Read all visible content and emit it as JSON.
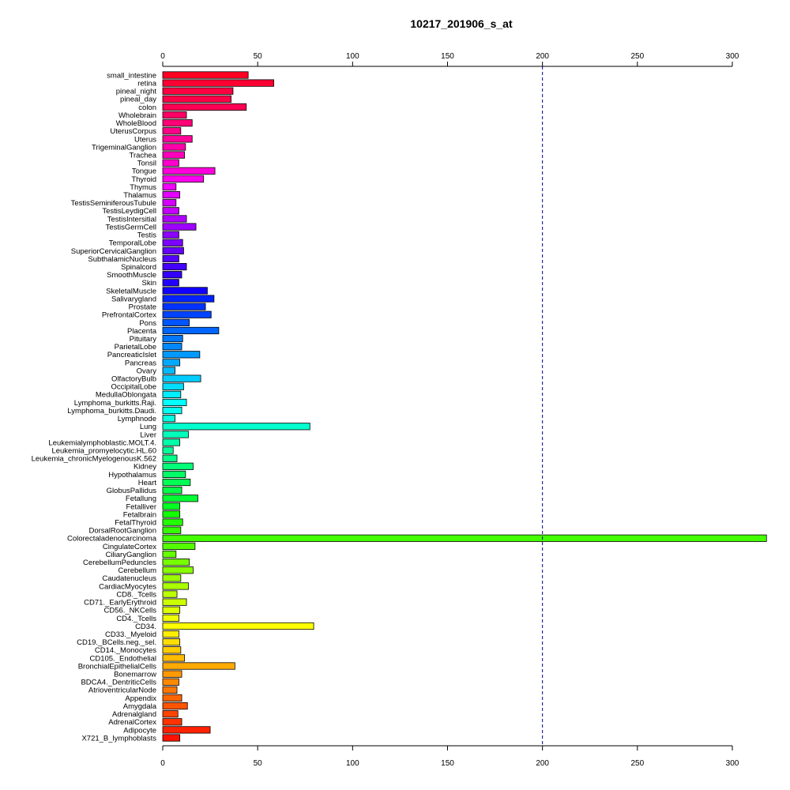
{
  "chart_data": {
    "type": "bar",
    "orientation": "horizontal",
    "title": "10217_201906_s_at",
    "xlabel": "",
    "ylabel": "",
    "xlim": [
      0,
      300
    ],
    "xticks": [
      0,
      50,
      100,
      150,
      200,
      250,
      300
    ],
    "reference_line": 200,
    "axes": "top and bottom",
    "grid": false,
    "categories": [
      "small_intestine",
      "retina",
      "pineal_night",
      "pineal_day",
      "colon",
      "Wholebrain",
      "WholeBlood",
      "UterusCorpus",
      "Uterus",
      "TrigeminalGanglion",
      "Trachea",
      "Tonsil",
      "Tongue",
      "Thyroid",
      "Thymus",
      "Thalamus",
      "TestisSeminiferousTubule",
      "TestisLeydigCell",
      "TestisIntersitial",
      "TestisGermCell",
      "Testis",
      "TemporalLobe",
      "SuperiorCervicalGanglion",
      "SubthalamicNucleus",
      "Spinalcord",
      "SmoothMuscle",
      "Skin",
      "SkeletalMuscle",
      "Salivarygland",
      "Prostate",
      "PrefrontalCortex",
      "Pons",
      "Placenta",
      "Pituitary",
      "ParietalLobe",
      "PancreaticIslet",
      "Pancreas",
      "Ovary",
      "OlfactoryBulb",
      "OccipitalLobe",
      "MedullaOblongata",
      "Lymphoma_burkitts.Raji.",
      "Lymphoma_burkitts.Daudi.",
      "Lymphnode",
      "Lung",
      "Liver",
      "Leukemialymphoblastic.MOLT.4.",
      "Leukemia_promyelocytic.HL.60",
      "Leukemia_chronicMyelogenousK.562",
      "Kidney",
      "Hypothalamus",
      "Heart",
      "GlobusPallidus",
      "Fetallung",
      "Fetalliver",
      "Fetalbrain",
      "FetalThyroid",
      "DorsalRootGanglion",
      "Colorectaladenocarcinoma",
      "CingulateCortex",
      "CiliaryGanglion",
      "CerebellumPeduncles",
      "Cerebellum",
      "Caudatenucleus",
      "CardiacMyocytes",
      "CD8._Tcells",
      "CD71._EarlyErythroid",
      "CD56._NKCells",
      "CD4._Tcells",
      "CD34.",
      "CD33._Myeloid",
      "CD19._BCells.neg._sel.",
      "CD14._Monocytes",
      "CD105._Endothelial",
      "BronchialEpithelialCells",
      "Bonemarrow",
      "BDCA4._DentriticCells",
      "AtrioventricularNode",
      "Appendix",
      "Amygdala",
      "Adrenalgland",
      "AdrenalCortex",
      "Adipocyte",
      "X721_B_lymphoblasts"
    ],
    "values": [
      45,
      58.5,
      37,
      36,
      44,
      12.5,
      15.5,
      9.5,
      15.5,
      12,
      11.5,
      8.5,
      27.5,
      21.5,
      7,
      9,
      7,
      8.5,
      12.5,
      17.5,
      8.5,
      10.5,
      11,
      8.5,
      12.5,
      10,
      8.5,
      23.5,
      27,
      22.5,
      25.5,
      14,
      29.5,
      10.5,
      10,
      19.5,
      9,
      6.5,
      20,
      11,
      9.5,
      12.5,
      10,
      6.5,
      77.5,
      13.5,
      9,
      5.5,
      7.5,
      16,
      12,
      14.5,
      10,
      18.5,
      9,
      9,
      10.5,
      9.5,
      318,
      17,
      7,
      14,
      16,
      9.5,
      13.5,
      7.5,
      12.5,
      9,
      8.5,
      79.5,
      8.5,
      9,
      9.5,
      11.5,
      38,
      10,
      8.5,
      7.5,
      10,
      13,
      8,
      10,
      25,
      9
    ],
    "colors": [
      "#ff0022",
      "#ff0033",
      "#ff0040",
      "#ff0048",
      "#ff0055",
      "#ff0066",
      "#ff0077",
      "#ff0088",
      "#ff0099",
      "#ff00aa",
      "#ff00bb",
      "#ff00cc",
      "#ff00dd",
      "#ff00ee",
      "#f400ff",
      "#e400ff",
      "#d400ff",
      "#c400ff",
      "#b000ff",
      "#9e00ff",
      "#8c00ff",
      "#7a00ff",
      "#6600ff",
      "#5500ff",
      "#4400ff",
      "#3300ff",
      "#2200ff",
      "#1100ff",
      "#0022ff",
      "#0033ff",
      "#0044ff",
      "#0055ff",
      "#0066ff",
      "#0077ff",
      "#0088ff",
      "#0099ff",
      "#00aaff",
      "#00bbff",
      "#00ccff",
      "#00ddff",
      "#00eeff",
      "#00ffff",
      "#00fff0",
      "#00ffe0",
      "#00ffcc",
      "#00ffbb",
      "#00ffaa",
      "#00ff99",
      "#00ff88",
      "#00ff77",
      "#00ff66",
      "#00ff55",
      "#00ff44",
      "#00ff33",
      "#00ff22",
      "#11ff00",
      "#22ff00",
      "#33ff00",
      "#44ff00",
      "#55ff00",
      "#66ff00",
      "#77ff00",
      "#88ff00",
      "#99ff00",
      "#aaff00",
      "#bbff00",
      "#ccff00",
      "#ddff00",
      "#eeff00",
      "#ffff00",
      "#ffee00",
      "#ffdd00",
      "#ffcc00",
      "#ffbb00",
      "#ffaa00",
      "#ff9900",
      "#ff8800",
      "#ff7700",
      "#ff6600",
      "#ff5500",
      "#ff4400",
      "#ff3300",
      "#ff2200",
      "#ff1100"
    ]
  }
}
